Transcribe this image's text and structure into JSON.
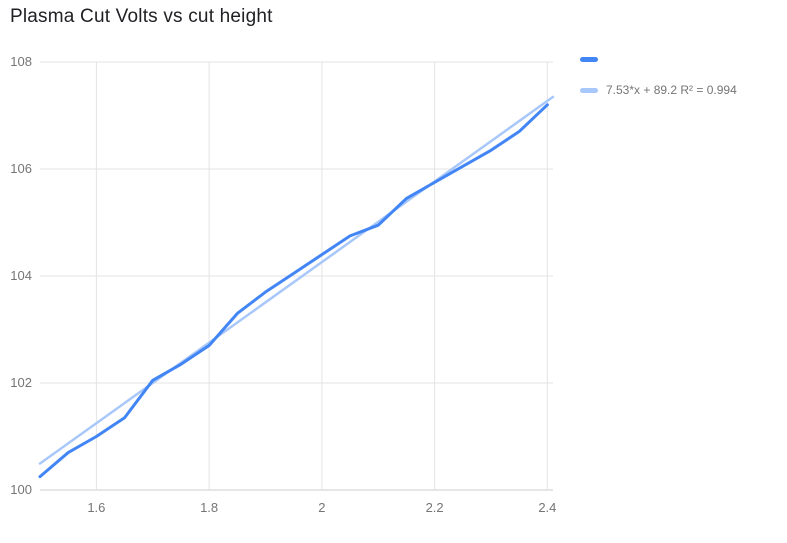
{
  "chart_data": {
    "type": "line",
    "title": "Plasma Cut Volts vs cut height",
    "x": [
      1.5,
      1.55,
      1.6,
      1.65,
      1.7,
      1.75,
      1.8,
      1.85,
      1.9,
      1.95,
      2,
      2.05,
      2.1,
      2.15,
      2.2,
      2.25,
      2.3,
      2.35,
      2.4
    ],
    "series": [
      {
        "name": "",
        "role": "data",
        "color": "#4285f4",
        "values": [
          100.25,
          100.7,
          101.0,
          101.35,
          102.05,
          102.35,
          102.7,
          103.3,
          103.7,
          104.05,
          104.4,
          104.75,
          104.95,
          105.45,
          105.75,
          106.05,
          106.35,
          106.7,
          107.2
        ]
      },
      {
        "name": "trendline",
        "role": "trendline",
        "color": "#a8c7fa",
        "equation": {
          "slope": 7.53,
          "intercept": 89.2,
          "r2": 0.994
        },
        "label": "7.53*x + 89.2 R² = 0.994"
      }
    ],
    "xticks": [
      1.6,
      1.8,
      2,
      2.2,
      2.4
    ],
    "yticks": [
      100,
      102,
      104,
      106,
      108
    ],
    "xlim": [
      1.5,
      2.41
    ],
    "ylim": [
      100,
      108
    ],
    "grid": true,
    "legend_position": "right",
    "colors": {
      "grid": "#e3e3e3",
      "baseline": "#cccccc",
      "tick_label": "#757575",
      "title": "#202124"
    }
  },
  "legend": {
    "series_label": "",
    "trendline_label": "7.53*x + 89.2 R² = 0.994"
  }
}
